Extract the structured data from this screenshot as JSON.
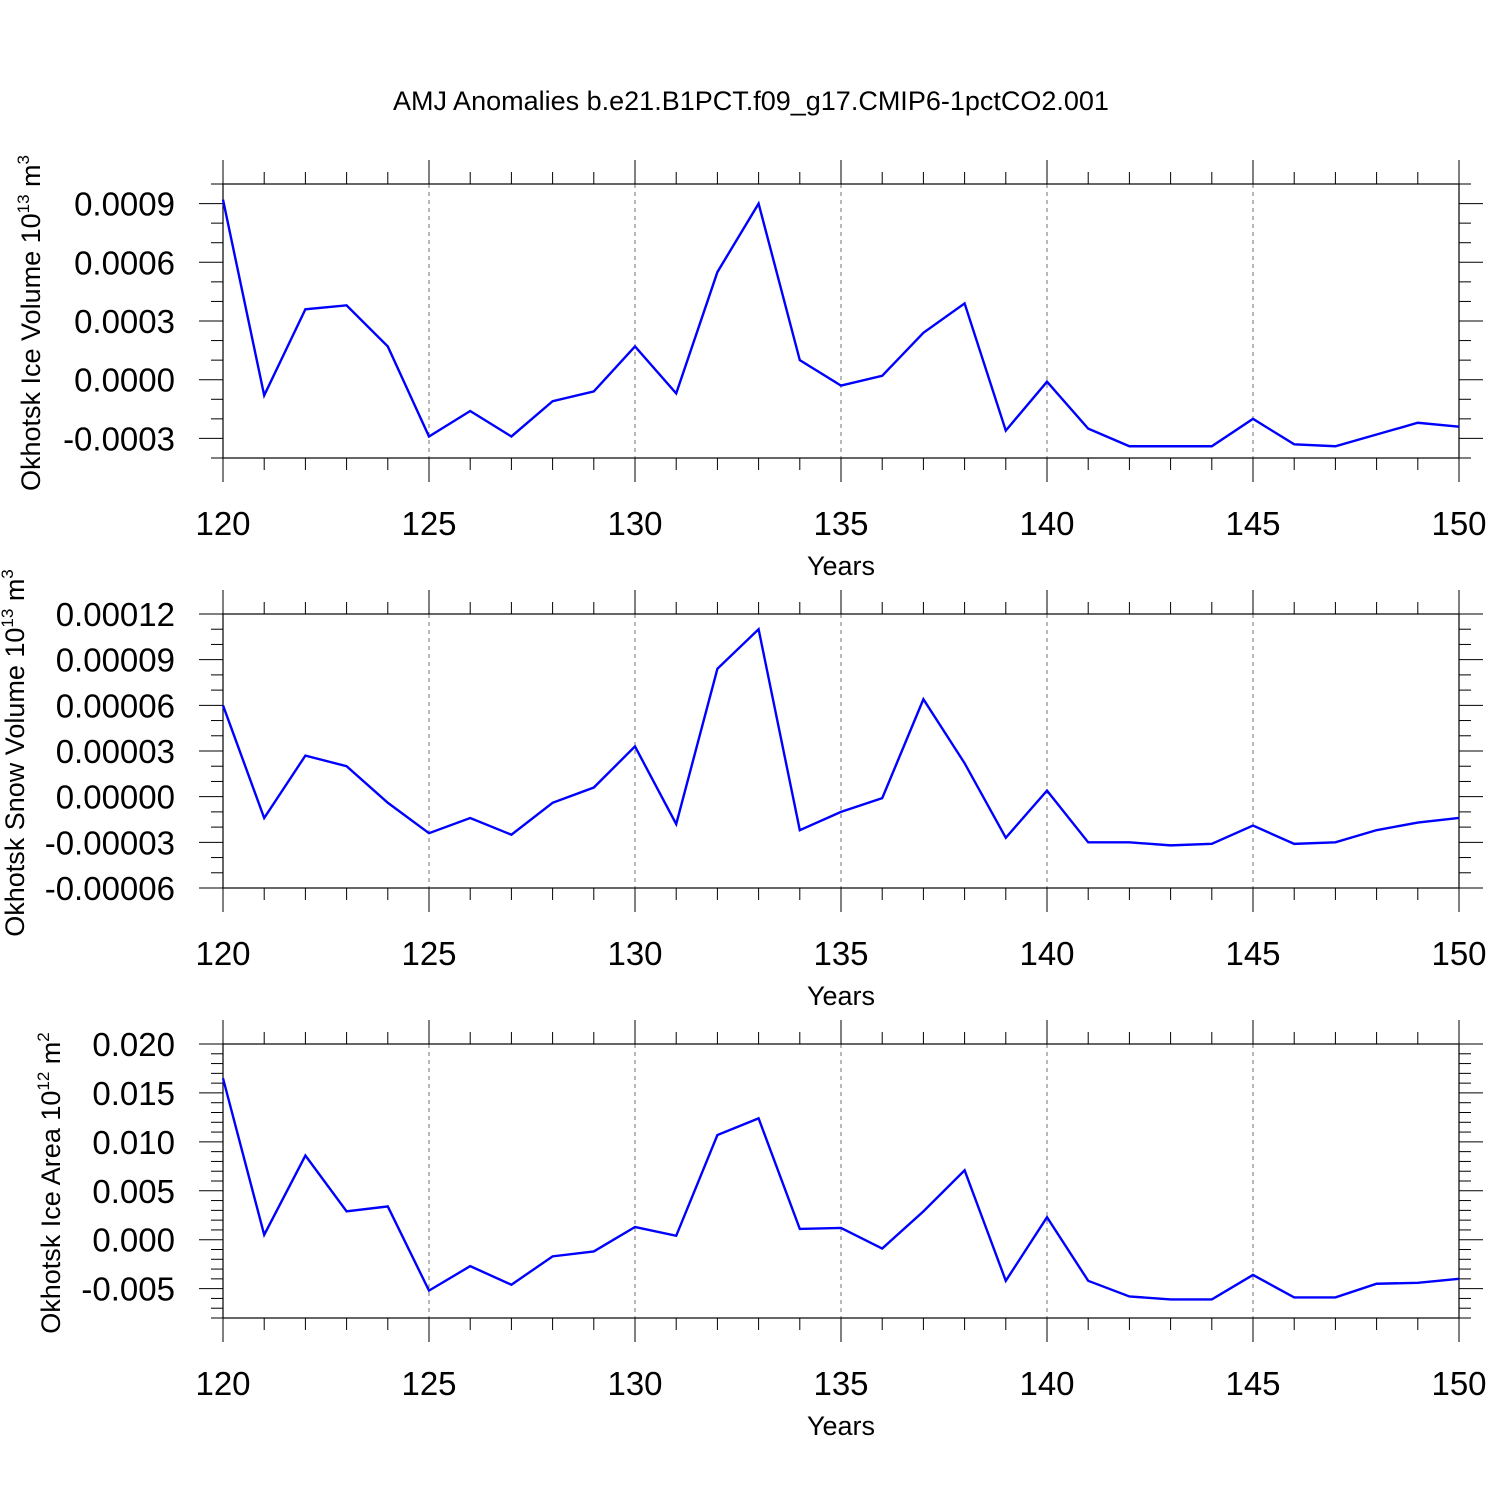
{
  "title": "AMJ Anomalies b.e21.B1PCT.f09_g17.CMIP6-1pctCO2.001",
  "line_color": "#0000ff",
  "chart_data": [
    {
      "type": "line",
      "xlabel": "Years",
      "ylabel": "Okhotsk Ice Volume 10",
      "ylabel_exp": "13",
      "ylabel_unit": " m",
      "ylabel_unit_exp": "3",
      "xlim": [
        120,
        150
      ],
      "ylim": [
        -0.0004,
        0.001
      ],
      "x_ticks": [
        120,
        125,
        130,
        135,
        140,
        145,
        150
      ],
      "x_tick_labels": [
        "120",
        "125",
        "130",
        "135",
        "140",
        "145",
        "150"
      ],
      "y_ticks": [
        -0.0003,
        0.0,
        0.0003,
        0.0006,
        0.0009
      ],
      "y_tick_labels": [
        "-0.0003",
        "0.0000",
        "0.0003",
        "0.0006",
        "0.0009"
      ],
      "y_minor_step": 0.0001,
      "x": [
        120,
        121,
        122,
        123,
        124,
        125,
        126,
        127,
        128,
        129,
        130,
        131,
        132,
        133,
        134,
        135,
        136,
        137,
        138,
        139,
        140,
        141,
        142,
        143,
        144,
        145,
        146,
        147,
        148,
        149,
        150
      ],
      "values": [
        0.00092,
        -8e-05,
        0.00036,
        0.00038,
        0.00017,
        -0.00029,
        -0.00016,
        -0.00029,
        -0.00011,
        -6e-05,
        0.00017,
        -7e-05,
        0.00055,
        0.0009,
        0.0001,
        -3e-05,
        2e-05,
        0.00024,
        0.00039,
        -0.00026,
        -1e-05,
        -0.00025,
        -0.00034,
        -0.00034,
        -0.00034,
        -0.0002,
        -0.00033,
        -0.00034,
        -0.00028,
        -0.00022,
        -0.00024
      ],
      "grid": "dashed vertical lines at major x ticks"
    },
    {
      "type": "line",
      "xlabel": "Years",
      "ylabel": "Okhotsk Snow Volume 10",
      "ylabel_exp": "13",
      "ylabel_unit": " m",
      "ylabel_unit_exp": "3",
      "xlim": [
        120,
        150
      ],
      "ylim": [
        -6e-05,
        0.00012
      ],
      "x_ticks": [
        120,
        125,
        130,
        135,
        140,
        145,
        150
      ],
      "x_tick_labels": [
        "120",
        "125",
        "130",
        "135",
        "140",
        "145",
        "150"
      ],
      "y_ticks": [
        -6e-05,
        -3e-05,
        0.0,
        3e-05,
        6e-05,
        9e-05,
        0.00012
      ],
      "y_tick_labels": [
        "-0.00006",
        "-0.00003",
        "0.00000",
        "0.00003",
        "0.00006",
        "0.00009",
        "0.00012"
      ],
      "y_minor_step": 1e-05,
      "x": [
        120,
        121,
        122,
        123,
        124,
        125,
        126,
        127,
        128,
        129,
        130,
        131,
        132,
        133,
        134,
        135,
        136,
        137,
        138,
        139,
        140,
        141,
        142,
        143,
        144,
        145,
        146,
        147,
        148,
        149,
        150
      ],
      "values": [
        6e-05,
        -1.4e-05,
        2.7e-05,
        2e-05,
        -4e-06,
        -2.4e-05,
        -1.4e-05,
        -2.5e-05,
        -4e-06,
        6e-06,
        3.3e-05,
        -1.8e-05,
        8.4e-05,
        0.00011,
        -2.2e-05,
        -1e-05,
        -1e-06,
        6.4e-05,
        2.2e-05,
        -2.7e-05,
        4e-06,
        -3e-05,
        -3e-05,
        -3.2e-05,
        -3.1e-05,
        -1.9e-05,
        -3.1e-05,
        -3e-05,
        -2.2e-05,
        -1.7e-05,
        -1.4e-05
      ],
      "grid": "dashed vertical lines at major x ticks"
    },
    {
      "type": "line",
      "xlabel": "Years",
      "ylabel": "Okhotsk Ice Area 10",
      "ylabel_exp": "12",
      "ylabel_unit": " m",
      "ylabel_unit_exp": "2",
      "xlim": [
        120,
        150
      ],
      "ylim": [
        -0.008,
        0.02
      ],
      "x_ticks": [
        120,
        125,
        130,
        135,
        140,
        145,
        150
      ],
      "x_tick_labels": [
        "120",
        "125",
        "130",
        "135",
        "140",
        "145",
        "150"
      ],
      "y_ticks": [
        -0.005,
        0.0,
        0.005,
        0.01,
        0.015,
        0.02
      ],
      "y_tick_labels": [
        "-0.005",
        "0.000",
        "0.005",
        "0.010",
        "0.015",
        "0.020"
      ],
      "y_minor_step": 0.001,
      "x": [
        120,
        121,
        122,
        123,
        124,
        125,
        126,
        127,
        128,
        129,
        130,
        131,
        132,
        133,
        134,
        135,
        136,
        137,
        138,
        139,
        140,
        141,
        142,
        143,
        144,
        145,
        146,
        147,
        148,
        149,
        150
      ],
      "values": [
        0.0165,
        0.0005,
        0.0086,
        0.0029,
        0.0034,
        -0.0052,
        -0.0027,
        -0.0046,
        -0.0017,
        -0.0012,
        0.0013,
        0.0004,
        0.0107,
        0.0124,
        0.0011,
        0.0012,
        -0.0009,
        0.0029,
        0.0071,
        -0.0042,
        0.0023,
        -0.0042,
        -0.0058,
        -0.0061,
        -0.0061,
        -0.0036,
        -0.0059,
        -0.0059,
        -0.0045,
        -0.0044,
        -0.004
      ],
      "grid": "dashed vertical lines at major x ticks"
    }
  ]
}
